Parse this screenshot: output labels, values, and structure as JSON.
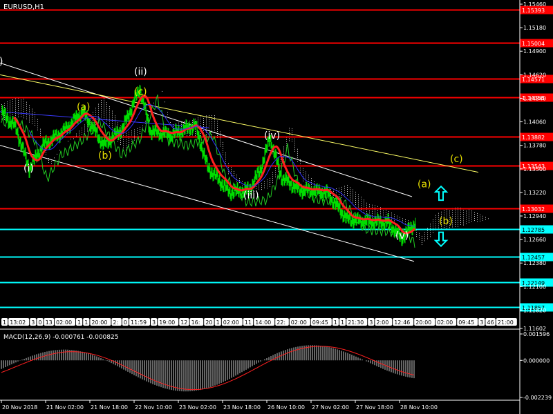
{
  "chart_data": {
    "type": "candlestick",
    "symbol": "EURUSD,H1",
    "price_axis": {
      "min": 1.11602,
      "max": 1.1546,
      "ticks": [
        1.1546,
        1.1518,
        1.149,
        1.1462,
        1.1434,
        1.1406,
        1.1378,
        1.135,
        1.1322,
        1.1294,
        1.1266,
        1.1238,
        1.121,
        1.1182,
        1.11602
      ]
    },
    "levels": [
      {
        "price": 1.15393,
        "color": "#ff0000",
        "badge": "#ff0000"
      },
      {
        "price": 1.15004,
        "color": "#ff0000",
        "badge": "#ff0000"
      },
      {
        "price": 1.14571,
        "color": "#ff0000",
        "badge": "#ff0000"
      },
      {
        "price": 1.14355,
        "color": "#ff0000",
        "badge": "#ff0000"
      },
      {
        "price": 1.13882,
        "color": "#ff0000",
        "badge": "#ff0000"
      },
      {
        "price": 1.13543,
        "color": "#ff0000",
        "badge": "#ff0000"
      },
      {
        "price": 1.13032,
        "color": "#ff0000",
        "badge": "#ff0000"
      },
      {
        "price": 1.12785,
        "color": "#00ffff",
        "badge": "#00ffff"
      },
      {
        "price": 1.12457,
        "color": "#00ffff",
        "badge": "#00ffff"
      },
      {
        "price": 1.12149,
        "color": "#00ffff",
        "badge": "#00ffff"
      },
      {
        "price": 1.11857,
        "color": "#00ffff",
        "badge": "#00ffff"
      }
    ],
    "time_axis": {
      "labels": [
        "20 Nov 2018",
        "21 Nov 02:00",
        "21 Nov 18:00",
        "22 Nov 10:00",
        "23 Nov 02:00",
        "23 Nov 18:00",
        "26 Nov 10:00",
        "27 Nov 02:00",
        "27 Nov 18:00",
        "28 Nov 10:00"
      ]
    },
    "wave_labels": [
      {
        "text": "(i)",
        "color": "#ffffff",
        "price": 1.1347,
        "bar": 40
      },
      {
        "text": "(ii)",
        "color": "#ffffff",
        "price": 1.1462,
        "bar": 200
      },
      {
        "text": "(c)",
        "color": "#e8e000",
        "price": 1.1438,
        "bar": 200
      },
      {
        "text": "(a)",
        "color": "#e8e000",
        "price": 1.142,
        "bar": 117
      },
      {
        "text": "(b)",
        "color": "#e8e000",
        "price": 1.1362,
        "bar": 148
      },
      {
        "text": "(iii)",
        "color": "#ffffff",
        "price": 1.1315,
        "bar": 358
      },
      {
        "text": "(iv)",
        "color": "#ffffff",
        "price": 1.1386,
        "bar": 388
      },
      {
        "text": "(v)",
        "color": "#ffffff",
        "price": 1.1267,
        "bar": 578
      },
      {
        "text": "(a)",
        "color": "#e8e000",
        "price": 1.1328,
        "bar": 610
      },
      {
        "text": "(c)",
        "color": "#e8e000",
        "price": 1.1358,
        "bar": 657
      },
      {
        "text": "(b)",
        "color": "#e8e000",
        "price": 1.1284,
        "bar": 641
      },
      {
        "text": ")",
        "color": "#ffffff",
        "price": 1.1474,
        "bar": 5
      }
    ],
    "event_times": [
      "1",
      "13:02",
      "3",
      "0",
      "13",
      "02:00",
      "1",
      "1",
      "20:00",
      "2:",
      "0",
      "11:59",
      "3",
      "19:00",
      "12",
      "16:",
      "20",
      "1",
      "02:00",
      "11",
      "14:00",
      "22:",
      "02:00",
      "09:45",
      "1",
      "1",
      "21:30",
      "3",
      "2:00",
      "12:46",
      "20:00",
      "02:00",
      "09:45",
      "3",
      "46",
      "21:00"
    ],
    "macd": {
      "label": "MACD(12,26,9) -0.000761 -0.000825",
      "axis": {
        "max": 0.001596,
        "mid": 0.0,
        "min": -0.002239
      },
      "ticks": [
        "0.001596",
        "0.000000",
        "-0.002239"
      ]
    },
    "arrows": [
      {
        "dir": "up",
        "color": "#00ffff",
        "bar": 636,
        "price": 1.1321
      },
      {
        "dir": "down",
        "color": "#00ffff",
        "bar": 636,
        "price": 1.1268
      }
    ]
  }
}
